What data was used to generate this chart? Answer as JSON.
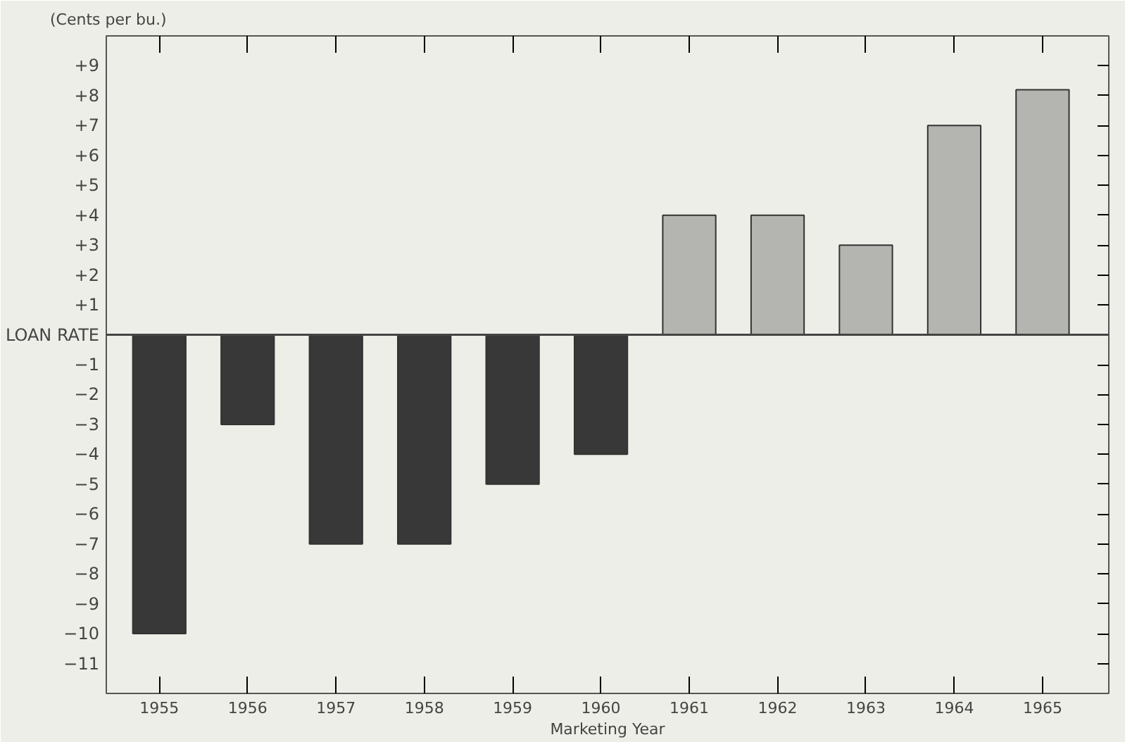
{
  "chart_data": {
    "type": "bar",
    "ylabel": "(Cents per bu.)",
    "xlabel": "Marketing Year",
    "categories": [
      "1955",
      "1956",
      "1957",
      "1958",
      "1959",
      "1960",
      "1961",
      "1962",
      "1963",
      "1964",
      "1965"
    ],
    "values": [
      -10,
      -3,
      -7,
      -7,
      -5,
      -4,
      4,
      4,
      3,
      7,
      8.2
    ],
    "colors": [
      "#383838",
      "#383838",
      "#383838",
      "#383838",
      "#383838",
      "#383838",
      "#b4b4b0",
      "#b4b4b0",
      "#b4b4b0",
      "#b4b4b0",
      "#b4b4b0"
    ],
    "ylim": [
      -12,
      10
    ],
    "yticks": [
      {
        "value": 9,
        "label": "+9"
      },
      {
        "value": 8,
        "label": "+8"
      },
      {
        "value": 7,
        "label": "+7"
      },
      {
        "value": 6,
        "label": "+6"
      },
      {
        "value": 5,
        "label": "+5"
      },
      {
        "value": 4,
        "label": "+4"
      },
      {
        "value": 3,
        "label": "+3"
      },
      {
        "value": 2,
        "label": "+2"
      },
      {
        "value": 1,
        "label": "+1"
      },
      {
        "value": 0,
        "label": "LOAN RATE"
      },
      -1,
      -2,
      -3,
      -4,
      -5,
      -6,
      -7,
      -8,
      -9,
      -10,
      -11
    ]
  }
}
